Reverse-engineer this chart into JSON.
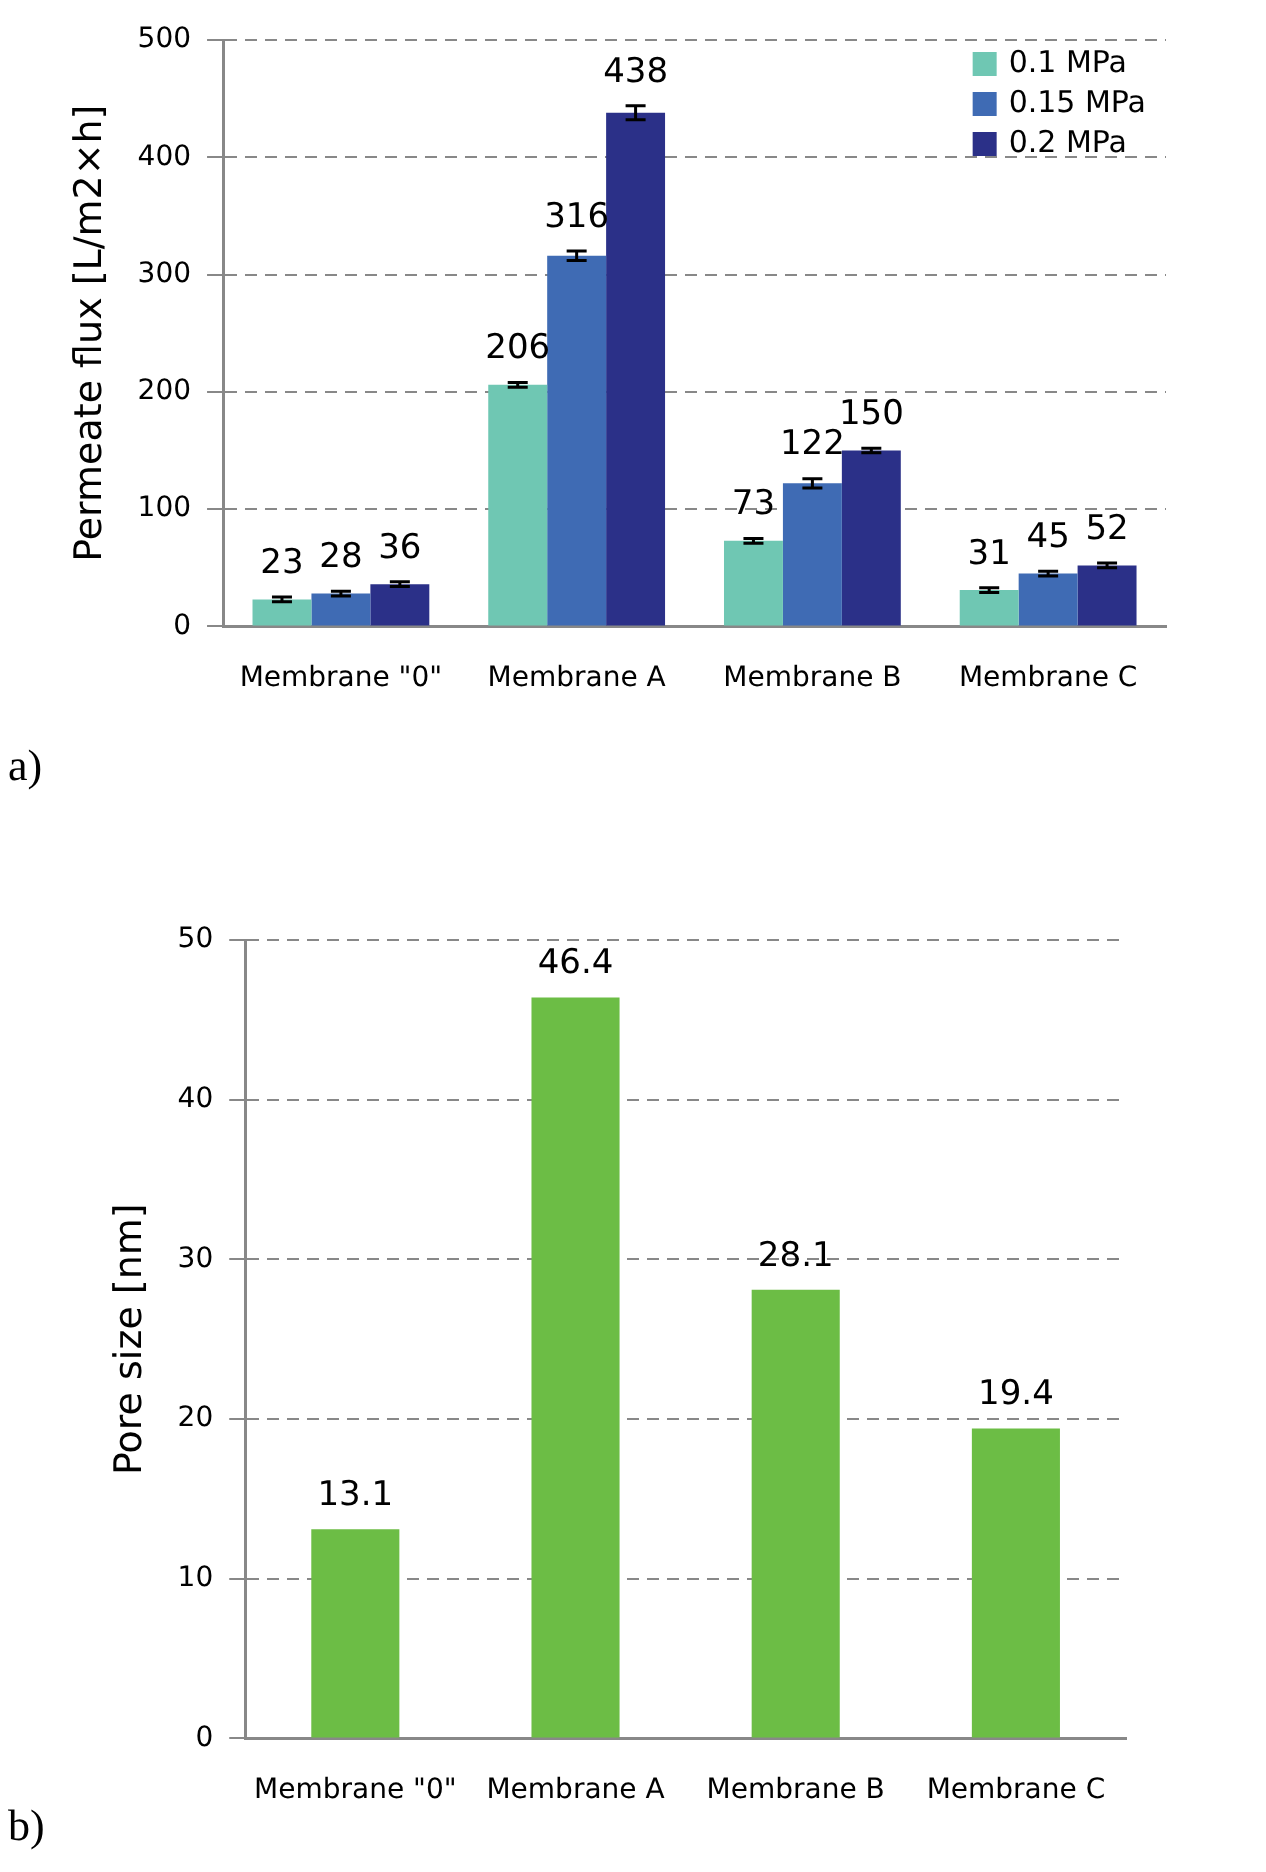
{
  "chart_data": [
    {
      "type": "bar",
      "ylabel": "Permeate flux [L/m2×h]",
      "categories": [
        "Membrane \"0\"",
        "Membrane A",
        "Membrane B",
        "Membrane C"
      ],
      "series": [
        {
          "name": "0.1 MPa",
          "color": "#6fc7b3",
          "values": [
            23,
            206,
            73,
            31
          ],
          "errors": [
            2,
            2,
            2,
            2
          ]
        },
        {
          "name": "0.15 MPa",
          "color": "#3f6bb4",
          "values": [
            28,
            316,
            122,
            45
          ],
          "errors": [
            2,
            4,
            4,
            2
          ]
        },
        {
          "name": "0.2 MPa",
          "color": "#2b3088",
          "values": [
            36,
            438,
            150,
            52
          ],
          "errors": [
            2,
            6,
            2,
            2
          ]
        }
      ],
      "ylim": [
        0,
        500
      ],
      "yticks": [
        0,
        100,
        200,
        300,
        400,
        500
      ],
      "grid": "y",
      "legend": "top right",
      "data_labels": true,
      "annotations": [
        "a)"
      ]
    },
    {
      "type": "bar",
      "ylabel": "Pore size [nm]",
      "categories": [
        "Membrane \"0\"",
        "Membrane A",
        "Membrane B",
        "Membrane C"
      ],
      "values": [
        13.1,
        46.4,
        28.1,
        19.4
      ],
      "color": "#6cbd45",
      "ylim": [
        0,
        50
      ],
      "yticks": [
        0,
        10,
        20,
        30,
        40,
        50
      ],
      "grid": "y",
      "data_labels": true,
      "annotations": [
        "b)"
      ]
    }
  ]
}
